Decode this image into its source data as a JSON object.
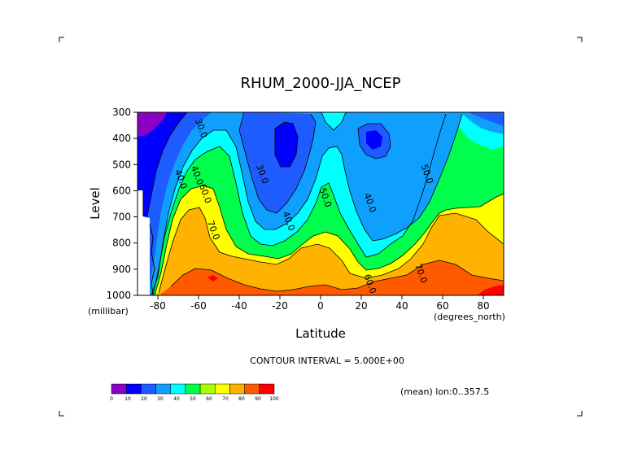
{
  "chart_data": {
    "type": "heatmap",
    "title": "RHUM_2000-JJA_NCEP",
    "xlabel": "Latitude",
    "ylabel": "Level",
    "x_units": "(degrees_north)",
    "y_units": "(millibar)",
    "xlim": [
      -90,
      90
    ],
    "ylim": [
      1000,
      300
    ],
    "x_ticks": [
      -80,
      -60,
      -40,
      -20,
      0,
      20,
      40,
      60,
      80
    ],
    "x_tick_labels": [
      "-80",
      "-60",
      "-40",
      "-20",
      "0",
      "20",
      "40",
      "60",
      "80"
    ],
    "y_ticks": [
      300,
      400,
      500,
      600,
      700,
      800,
      900,
      1000
    ],
    "y_tick_labels": [
      "300",
      "400",
      "500",
      "600",
      "700",
      "800",
      "900",
      "1000"
    ],
    "contour_interval_text": "CONTOUR INTERVAL = 5.000E+00",
    "mean_text": "(mean) lon:0..357.5",
    "contour_labels": [
      {
        "text": "30.0",
        "x": -60,
        "y": 365
      },
      {
        "text": "40.0",
        "x": -70,
        "y": 560
      },
      {
        "text": "40.0",
        "x": -62,
        "y": 545
      },
      {
        "text": "30.0",
        "x": -30,
        "y": 540
      },
      {
        "text": "40.0",
        "x": -17,
        "y": 720
      },
      {
        "text": "50.0",
        "x": 1,
        "y": 630
      },
      {
        "text": "40.0",
        "x": 23,
        "y": 650
      },
      {
        "text": "50.0",
        "x": 51,
        "y": 540
      },
      {
        "text": "60.0",
        "x": -58,
        "y": 615
      },
      {
        "text": "70.0",
        "x": -54,
        "y": 755
      },
      {
        "text": "60.0",
        "x": 23,
        "y": 960
      },
      {
        "text": "70.0",
        "x": 48,
        "y": 920
      }
    ],
    "legend": {
      "levels": [
        0,
        10,
        20,
        30,
        40,
        50,
        60,
        70,
        80,
        90,
        100
      ],
      "labels": [
        "0",
        "10",
        "20",
        "30",
        "40",
        "50",
        "60",
        "70",
        "80",
        "90",
        "100"
      ],
      "colors": [
        "#8a00c4",
        "#0000ff",
        "#1e5cff",
        "#0fa0ff",
        "#00ffff",
        "#00ff4c",
        "#a5ff00",
        "#ffff00",
        "#ffb300",
        "#ff5a00",
        "#ff0000"
      ]
    },
    "grid": false
  }
}
